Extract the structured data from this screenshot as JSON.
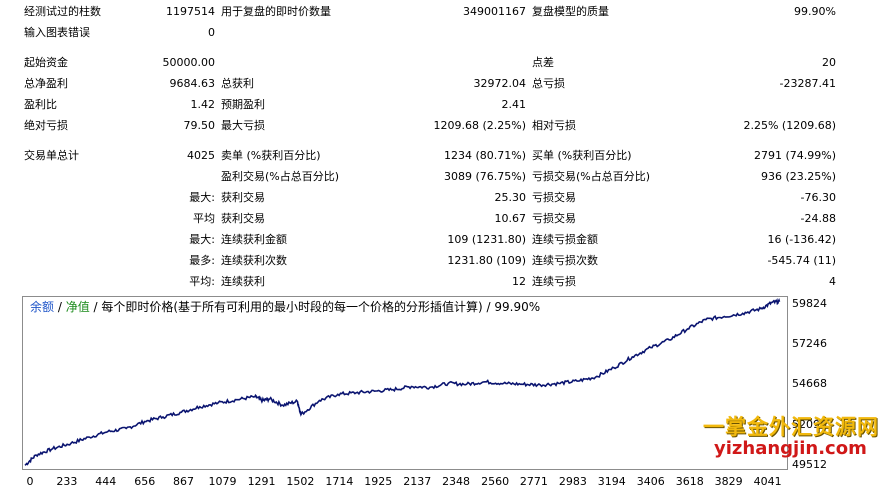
{
  "report": {
    "row1": [
      {
        "label": "经测试过的柱数",
        "value": "1197514"
      },
      {
        "label": "用于复盘的即时价数量",
        "value": "349001167"
      },
      {
        "label": "复盘模型的质量",
        "value": "99.90%"
      }
    ],
    "row2": {
      "label": "输入图表错误",
      "value": "0"
    },
    "row3": [
      {
        "label": "起始资金",
        "value": "50000.00"
      },
      {
        "label": "点差",
        "value": "20"
      }
    ],
    "row4": [
      {
        "label": "总净盈利",
        "value": "9684.63"
      },
      {
        "label": "总获利",
        "value": "32972.04"
      },
      {
        "label": "总亏损",
        "value": "-23287.41"
      }
    ],
    "row5": [
      {
        "label": "盈利比",
        "value": "1.42"
      },
      {
        "label": "预期盈利",
        "value": "2.41"
      }
    ],
    "row6": [
      {
        "label": "绝对亏损",
        "value": "79.50"
      },
      {
        "label": "最大亏损",
        "value": "1209.68 (2.25%)"
      },
      {
        "label": "相对亏损",
        "value": "2.25% (1209.68)"
      }
    ],
    "row7": [
      {
        "label": "交易单总计",
        "value": "4025"
      },
      {
        "label": "卖单 (%获利百分比)",
        "value": "1234 (80.71%)"
      },
      {
        "label": "买单 (%获利百分比)",
        "value": "2791 (74.99%)"
      }
    ],
    "row8": [
      {
        "label": "盈利交易(%占总百分比)",
        "value": "3089 (76.75%)"
      },
      {
        "label": "亏损交易(%占总百分比)",
        "value": "936 (23.25%)"
      }
    ],
    "row9": {
      "prefix": "最大:",
      "items": [
        {
          "label": "获利交易",
          "value": "25.30"
        },
        {
          "label": "亏损交易",
          "value": "-76.30"
        }
      ]
    },
    "row10": {
      "prefix": "平均",
      "items": [
        {
          "label": "获利交易",
          "value": "10.67"
        },
        {
          "label": "亏损交易",
          "value": "-24.88"
        }
      ]
    },
    "row11": {
      "prefix": "最大:",
      "items": [
        {
          "label": "连续获利金额",
          "value": "109 (1231.80)"
        },
        {
          "label": "连续亏损金额",
          "value": "16 (-136.42)"
        }
      ]
    },
    "row12": {
      "prefix": "最多:",
      "items": [
        {
          "label": "连续获利次数",
          "value": "1231.80 (109)"
        },
        {
          "label": "连续亏损次数",
          "value": "-545.74 (11)"
        }
      ]
    },
    "row13": {
      "prefix": "平均:",
      "items": [
        {
          "label": "连续获利",
          "value": "12"
        },
        {
          "label": "连续亏损",
          "value": "4"
        }
      ]
    }
  },
  "chart_legend": {
    "balance": "余额",
    "sep1": " / ",
    "equity": "净值",
    "rest": " / 每个即时价格(基于所有可利用的最小时段的每一个价格的分形插值计算) / 99.90%"
  },
  "watermark": {
    "cn": "一掌金外汇资源网",
    "url": "yizhangjin.com"
  },
  "colors": {
    "line": "#0a1470",
    "balance_legend": "#1f55c8",
    "equity_legend": "#1a8a1a"
  },
  "chart_data": {
    "type": "line",
    "title": "",
    "xlabel": "",
    "ylabel": "",
    "x_ticks": [
      0,
      233,
      444,
      656,
      867,
      1079,
      1291,
      1502,
      1714,
      1925,
      2137,
      2348,
      2560,
      2771,
      2983,
      3194,
      3406,
      3618,
      3829,
      4041
    ],
    "y_ticks": [
      49512,
      52090,
      54668,
      57246,
      59824
    ],
    "xlim": [
      0,
      4130
    ],
    "ylim": [
      49300,
      60350
    ],
    "series": [
      {
        "name": "净值",
        "x": [
          0,
          60,
          150,
          250,
          350,
          450,
          550,
          650,
          750,
          850,
          950,
          1050,
          1150,
          1250,
          1290,
          1330,
          1400,
          1480,
          1500,
          1600,
          1700,
          1800,
          1900,
          2000,
          2100,
          2200,
          2300,
          2400,
          2500,
          2600,
          2700,
          2800,
          2900,
          3000,
          3100,
          3200,
          3300,
          3400,
          3500,
          3600,
          3700,
          3800,
          3900,
          4000,
          4060,
          4100
        ],
        "values": [
          49540,
          50200,
          50600,
          50950,
          51350,
          51700,
          51900,
          52350,
          52650,
          52950,
          53300,
          53550,
          53750,
          53950,
          53700,
          53800,
          53400,
          53650,
          52800,
          53700,
          54100,
          54200,
          54300,
          54400,
          54600,
          54550,
          54800,
          54750,
          54900,
          54800,
          54750,
          54700,
          54800,
          54950,
          55200,
          55800,
          56500,
          57100,
          57600,
          58300,
          58900,
          59100,
          59300,
          59600,
          60000,
          60050
        ]
      }
    ]
  }
}
